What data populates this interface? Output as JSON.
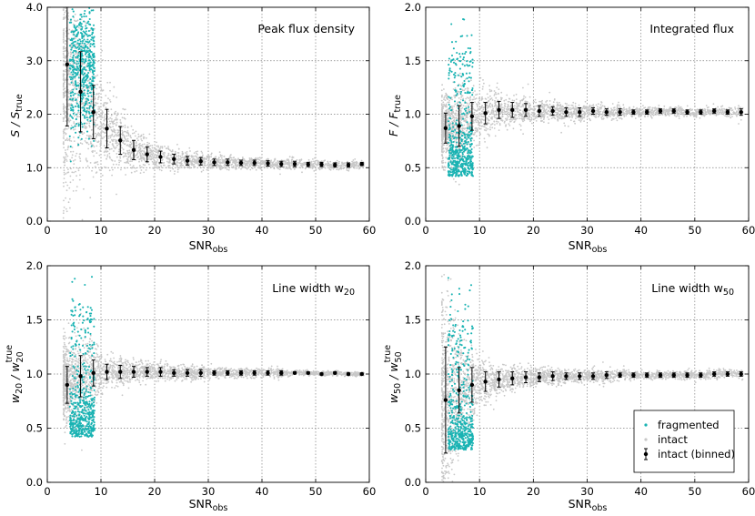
{
  "colors": {
    "fragmented": "#1ab3b3",
    "intact": "#c8c8c8",
    "binned": "#000000",
    "grid": "#808080"
  },
  "legend": {
    "fragmented": "fragmented",
    "intact": "intact",
    "binned": "intact (binned)",
    "placement": "bottom-right of lower-right panel"
  },
  "chart_data": [
    {
      "type": "scatter",
      "title": "Peak flux density",
      "xlabel": "SNR",
      "xlabel_sub": "obs",
      "ylabel": "S / S",
      "ylabel_sub": "true",
      "xlim": [
        0,
        60
      ],
      "ylim": [
        0,
        4
      ],
      "xticks": [
        "0",
        "10",
        "20",
        "30",
        "40",
        "50",
        "60"
      ],
      "yticks": [
        "0.0",
        "1.0",
        "2.0",
        "3.0",
        "4.0"
      ],
      "ytick_values": [
        0,
        1,
        2,
        3,
        4
      ],
      "grid": true,
      "binned": [
        {
          "x": 3.7,
          "y": 2.93,
          "err": 1.15
        },
        {
          "x": 6.2,
          "y": 2.42,
          "err": 0.75
        },
        {
          "x": 8.6,
          "y": 2.04,
          "err": 0.5
        },
        {
          "x": 11.1,
          "y": 1.73,
          "err": 0.36
        },
        {
          "x": 13.6,
          "y": 1.51,
          "err": 0.26
        },
        {
          "x": 16.1,
          "y": 1.33,
          "err": 0.18
        },
        {
          "x": 18.6,
          "y": 1.25,
          "err": 0.14
        },
        {
          "x": 21.1,
          "y": 1.2,
          "err": 0.11
        },
        {
          "x": 23.6,
          "y": 1.16,
          "err": 0.09
        },
        {
          "x": 26.1,
          "y": 1.13,
          "err": 0.08
        },
        {
          "x": 28.6,
          "y": 1.12,
          "err": 0.07
        },
        {
          "x": 31.1,
          "y": 1.1,
          "err": 0.06
        },
        {
          "x": 33.6,
          "y": 1.1,
          "err": 0.06
        },
        {
          "x": 36.1,
          "y": 1.09,
          "err": 0.05
        },
        {
          "x": 38.6,
          "y": 1.09,
          "err": 0.05
        },
        {
          "x": 41.1,
          "y": 1.08,
          "err": 0.05
        },
        {
          "x": 43.6,
          "y": 1.07,
          "err": 0.05
        },
        {
          "x": 46.1,
          "y": 1.07,
          "err": 0.05
        },
        {
          "x": 48.6,
          "y": 1.06,
          "err": 0.04
        },
        {
          "x": 51.1,
          "y": 1.06,
          "err": 0.04
        },
        {
          "x": 53.6,
          "y": 1.05,
          "err": 0.04
        },
        {
          "x": 56.1,
          "y": 1.05,
          "err": 0.04
        },
        {
          "x": 58.6,
          "y": 1.07,
          "err": 0.03
        }
      ]
    },
    {
      "type": "scatter",
      "title": "Integrated flux",
      "xlabel": "SNR",
      "xlabel_sub": "obs",
      "ylabel": "F / F",
      "ylabel_sub": "true",
      "xlim": [
        0,
        60
      ],
      "ylim": [
        0,
        2
      ],
      "xticks": [
        "0",
        "10",
        "20",
        "30",
        "40",
        "50",
        "60"
      ],
      "yticks": [
        "0.0",
        "0.5",
        "1.0",
        "1.5",
        "2.0"
      ],
      "ytick_values": [
        0,
        0.5,
        1,
        1.5,
        2
      ],
      "grid": true,
      "binned": [
        {
          "x": 3.7,
          "y": 0.87,
          "err": 0.14
        },
        {
          "x": 6.2,
          "y": 0.89,
          "err": 0.19
        },
        {
          "x": 8.6,
          "y": 0.98,
          "err": 0.13
        },
        {
          "x": 11.1,
          "y": 1.01,
          "err": 0.1
        },
        {
          "x": 13.6,
          "y": 1.04,
          "err": 0.08
        },
        {
          "x": 16.1,
          "y": 1.04,
          "err": 0.07
        },
        {
          "x": 18.6,
          "y": 1.04,
          "err": 0.06
        },
        {
          "x": 21.1,
          "y": 1.03,
          "err": 0.05
        },
        {
          "x": 23.6,
          "y": 1.03,
          "err": 0.04
        },
        {
          "x": 26.1,
          "y": 1.02,
          "err": 0.04
        },
        {
          "x": 28.6,
          "y": 1.02,
          "err": 0.04
        },
        {
          "x": 31.1,
          "y": 1.03,
          "err": 0.03
        },
        {
          "x": 33.6,
          "y": 1.02,
          "err": 0.03
        },
        {
          "x": 36.1,
          "y": 1.02,
          "err": 0.03
        },
        {
          "x": 38.6,
          "y": 1.02,
          "err": 0.02
        },
        {
          "x": 41.1,
          "y": 1.02,
          "err": 0.02
        },
        {
          "x": 43.6,
          "y": 1.03,
          "err": 0.02
        },
        {
          "x": 46.1,
          "y": 1.03,
          "err": 0.02
        },
        {
          "x": 48.6,
          "y": 1.02,
          "err": 0.02
        },
        {
          "x": 51.1,
          "y": 1.02,
          "err": 0.02
        },
        {
          "x": 53.6,
          "y": 1.03,
          "err": 0.02
        },
        {
          "x": 56.1,
          "y": 1.02,
          "err": 0.02
        },
        {
          "x": 58.6,
          "y": 1.02,
          "err": 0.03
        }
      ]
    },
    {
      "type": "scatter",
      "title": "Line width w",
      "title_sub": "20",
      "xlabel": "SNR",
      "xlabel_sub": "obs",
      "ylabel": "w",
      "ylabel_sub": "20",
      "ylabel_mid": " / w",
      "ylabel_sub2": "20",
      "ylabel_sup2": "true",
      "xlim": [
        0,
        60
      ],
      "ylim": [
        0,
        2
      ],
      "xticks": [
        "0",
        "10",
        "20",
        "30",
        "40",
        "50",
        "60"
      ],
      "yticks": [
        "0.0",
        "0.5",
        "1.0",
        "1.5",
        "2.0"
      ],
      "ytick_values": [
        0,
        0.5,
        1,
        1.5,
        2
      ],
      "grid": true,
      "binned": [
        {
          "x": 3.7,
          "y": 0.9,
          "err": 0.17
        },
        {
          "x": 6.2,
          "y": 0.98,
          "err": 0.19
        },
        {
          "x": 8.6,
          "y": 1.01,
          "err": 0.12
        },
        {
          "x": 11.1,
          "y": 1.02,
          "err": 0.07
        },
        {
          "x": 13.6,
          "y": 1.02,
          "err": 0.06
        },
        {
          "x": 16.1,
          "y": 1.02,
          "err": 0.05
        },
        {
          "x": 18.6,
          "y": 1.02,
          "err": 0.04
        },
        {
          "x": 21.1,
          "y": 1.02,
          "err": 0.04
        },
        {
          "x": 23.6,
          "y": 1.01,
          "err": 0.03
        },
        {
          "x": 26.1,
          "y": 1.01,
          "err": 0.03
        },
        {
          "x": 28.6,
          "y": 1.01,
          "err": 0.03
        },
        {
          "x": 31.1,
          "y": 1.01,
          "err": 0.02
        },
        {
          "x": 33.6,
          "y": 1.01,
          "err": 0.02
        },
        {
          "x": 36.1,
          "y": 1.01,
          "err": 0.02
        },
        {
          "x": 38.6,
          "y": 1.01,
          "err": 0.02
        },
        {
          "x": 41.1,
          "y": 1.01,
          "err": 0.02
        },
        {
          "x": 43.6,
          "y": 1.01,
          "err": 0.02
        },
        {
          "x": 46.1,
          "y": 1.01,
          "err": 0.01
        },
        {
          "x": 48.6,
          "y": 1.01,
          "err": 0.01
        },
        {
          "x": 51.1,
          "y": 1.0,
          "err": 0.01
        },
        {
          "x": 53.6,
          "y": 1.01,
          "err": 0.01
        },
        {
          "x": 56.1,
          "y": 1.0,
          "err": 0.01
        },
        {
          "x": 58.6,
          "y": 1.0,
          "err": 0.01
        }
      ]
    },
    {
      "type": "scatter",
      "title": "Line width w",
      "title_sub": "50",
      "xlabel": "SNR",
      "xlabel_sub": "obs",
      "ylabel": "w",
      "ylabel_sub": "50",
      "ylabel_mid": " / w",
      "ylabel_sub2": "50",
      "ylabel_sup2": "true",
      "xlim": [
        0,
        60
      ],
      "ylim": [
        0,
        2
      ],
      "xticks": [
        "0",
        "10",
        "20",
        "30",
        "40",
        "50",
        "60"
      ],
      "yticks": [
        "0.0",
        "0.5",
        "1.0",
        "1.5",
        "2.0"
      ],
      "ytick_values": [
        0,
        0.5,
        1,
        1.5,
        2
      ],
      "grid": true,
      "binned": [
        {
          "x": 3.7,
          "y": 0.76,
          "err": 0.49
        },
        {
          "x": 6.2,
          "y": 0.85,
          "err": 0.21
        },
        {
          "x": 8.6,
          "y": 0.9,
          "err": 0.16
        },
        {
          "x": 11.1,
          "y": 0.93,
          "err": 0.09
        },
        {
          "x": 13.6,
          "y": 0.95,
          "err": 0.07
        },
        {
          "x": 16.1,
          "y": 0.96,
          "err": 0.06
        },
        {
          "x": 18.6,
          "y": 0.97,
          "err": 0.05
        },
        {
          "x": 21.1,
          "y": 0.97,
          "err": 0.04
        },
        {
          "x": 23.6,
          "y": 0.98,
          "err": 0.04
        },
        {
          "x": 26.1,
          "y": 0.98,
          "err": 0.03
        },
        {
          "x": 28.6,
          "y": 0.98,
          "err": 0.03
        },
        {
          "x": 31.1,
          "y": 0.98,
          "err": 0.03
        },
        {
          "x": 33.6,
          "y": 0.99,
          "err": 0.03
        },
        {
          "x": 36.1,
          "y": 0.99,
          "err": 0.02
        },
        {
          "x": 38.6,
          "y": 0.99,
          "err": 0.02
        },
        {
          "x": 41.1,
          "y": 0.99,
          "err": 0.02
        },
        {
          "x": 43.6,
          "y": 0.99,
          "err": 0.02
        },
        {
          "x": 46.1,
          "y": 0.99,
          "err": 0.02
        },
        {
          "x": 48.6,
          "y": 0.99,
          "err": 0.02
        },
        {
          "x": 51.1,
          "y": 0.99,
          "err": 0.02
        },
        {
          "x": 53.6,
          "y": 1.0,
          "err": 0.02
        },
        {
          "x": 56.1,
          "y": 1.0,
          "err": 0.02
        },
        {
          "x": 58.6,
          "y": 1.0,
          "err": 0.02
        }
      ]
    }
  ]
}
